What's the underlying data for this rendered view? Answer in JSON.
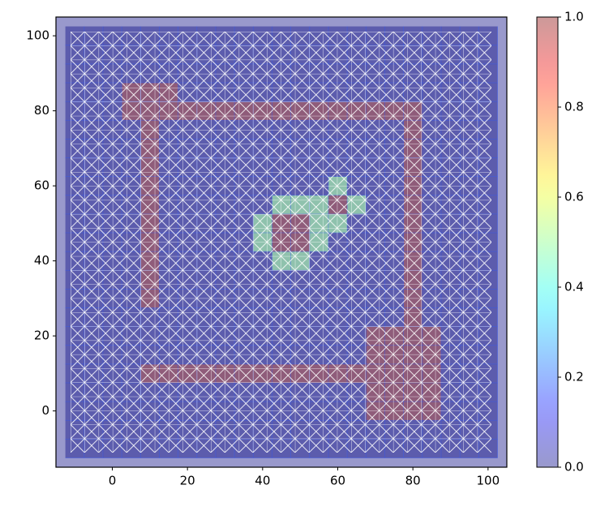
{
  "chart_data": {
    "type": "heatmap",
    "cmap": "jet",
    "alpha": 0.4,
    "x": [
      -10,
      -5,
      0,
      5,
      10,
      15,
      20,
      25,
      30,
      35,
      40,
      45,
      50,
      55,
      60,
      65,
      70,
      75,
      80,
      85,
      90,
      95,
      100
    ],
    "y": [
      -10,
      -5,
      0,
      5,
      10,
      15,
      20,
      25,
      30,
      35,
      40,
      45,
      50,
      55,
      60,
      65,
      70,
      75,
      80,
      85,
      90,
      95,
      100
    ],
    "z": [
      [
        0,
        0,
        0,
        0,
        0,
        0,
        0,
        0,
        0,
        0,
        0,
        0,
        0,
        0,
        0,
        0,
        0,
        0,
        0,
        0,
        0,
        0,
        0
      ],
      [
        0,
        0,
        0,
        0,
        0,
        0,
        0,
        0,
        0,
        0,
        0,
        0,
        0,
        0,
        0,
        0,
        0,
        0,
        0,
        0,
        0,
        0,
        0
      ],
      [
        0,
        0,
        0,
        0,
        0,
        0,
        0,
        0,
        0,
        0,
        0,
        0,
        0,
        0,
        0,
        0,
        1,
        1,
        1,
        1,
        0,
        0,
        0
      ],
      [
        0,
        0,
        0,
        0,
        0,
        0,
        0,
        0,
        0,
        0,
        0,
        0,
        0,
        0,
        0,
        0,
        1,
        1,
        1,
        1,
        0,
        0,
        0
      ],
      [
        0,
        0,
        0,
        0,
        1,
        1,
        1,
        1,
        1,
        1,
        1,
        1,
        1,
        1,
        1,
        1,
        1,
        1,
        1,
        1,
        0,
        0,
        0
      ],
      [
        0,
        0,
        0,
        0,
        0,
        0,
        0,
        0,
        0,
        0,
        0,
        0,
        0,
        0,
        0,
        0,
        1,
        1,
        1,
        1,
        0,
        0,
        0
      ],
      [
        0,
        0,
        0,
        0,
        0,
        0,
        0,
        0,
        0,
        0,
        0,
        0,
        0,
        0,
        0,
        0,
        1,
        1,
        1,
        1,
        0,
        0,
        0
      ],
      [
        0,
        0,
        0,
        0,
        0,
        0,
        0,
        0,
        0,
        0,
        0,
        0,
        0,
        0,
        0,
        0,
        0,
        0,
        1,
        0,
        0,
        0,
        0
      ],
      [
        0,
        0,
        0,
        0,
        1,
        0,
        0,
        0,
        0,
        0,
        0,
        0,
        0,
        0,
        0,
        0,
        0,
        0,
        1,
        0,
        0,
        0,
        0
      ],
      [
        0,
        0,
        0,
        0,
        1,
        0,
        0,
        0,
        0,
        0,
        0,
        0,
        0,
        0,
        0,
        0,
        0,
        0,
        1,
        0,
        0,
        0,
        0
      ],
      [
        0,
        0,
        0,
        0,
        1,
        0,
        0,
        0,
        0,
        0,
        0,
        0.5,
        0.5,
        0,
        0,
        0,
        0,
        0,
        1,
        0,
        0,
        0,
        0
      ],
      [
        0,
        0,
        0,
        0,
        1,
        0,
        0,
        0,
        0,
        0,
        0.5,
        1,
        1,
        0.5,
        0,
        0,
        0,
        0,
        1,
        0,
        0,
        0,
        0
      ],
      [
        0,
        0,
        0,
        0,
        1,
        0,
        0,
        0,
        0,
        0,
        0.5,
        1,
        1,
        0.5,
        0.5,
        0,
        0,
        0,
        1,
        0,
        0,
        0,
        0
      ],
      [
        0,
        0,
        0,
        0,
        1,
        0,
        0,
        0,
        0,
        0,
        0,
        0.5,
        0.5,
        0.5,
        1,
        0.5,
        0,
        0,
        1,
        0,
        0,
        0,
        0
      ],
      [
        0,
        0,
        0,
        0,
        1,
        0,
        0,
        0,
        0,
        0,
        0,
        0,
        0,
        0,
        0.5,
        0,
        0,
        0,
        1,
        0,
        0,
        0,
        0
      ],
      [
        0,
        0,
        0,
        0,
        1,
        0,
        0,
        0,
        0,
        0,
        0,
        0,
        0,
        0,
        0,
        0,
        0,
        0,
        1,
        0,
        0,
        0,
        0
      ],
      [
        0,
        0,
        0,
        0,
        1,
        0,
        0,
        0,
        0,
        0,
        0,
        0,
        0,
        0,
        0,
        0,
        0,
        0,
        1,
        0,
        0,
        0,
        0
      ],
      [
        0,
        0,
        0,
        0,
        1,
        0,
        0,
        0,
        0,
        0,
        0,
        0,
        0,
        0,
        0,
        0,
        0,
        0,
        1,
        0,
        0,
        0,
        0
      ],
      [
        0,
        0,
        0,
        1,
        1,
        1,
        1,
        1,
        1,
        1,
        1,
        1,
        1,
        1,
        1,
        1,
        1,
        1,
        1,
        0,
        0,
        0,
        0
      ],
      [
        0,
        0,
        0,
        1,
        1,
        1,
        0,
        0,
        0,
        0,
        0,
        0,
        0,
        0,
        0,
        0,
        0,
        0,
        0,
        0,
        0,
        0,
        0
      ],
      [
        0,
        0,
        0,
        0,
        0,
        0,
        0,
        0,
        0,
        0,
        0,
        0,
        0,
        0,
        0,
        0,
        0,
        0,
        0,
        0,
        0,
        0,
        0
      ],
      [
        0,
        0,
        0,
        0,
        0,
        0,
        0,
        0,
        0,
        0,
        0,
        0,
        0,
        0,
        0,
        0,
        0,
        0,
        0,
        0,
        0,
        0,
        0
      ],
      [
        0,
        0,
        0,
        0,
        0,
        0,
        0,
        0,
        0,
        0,
        0,
        0,
        0,
        0,
        0,
        0,
        0,
        0,
        0,
        0,
        0,
        0,
        0
      ]
    ],
    "xlim": [
      -15,
      105
    ],
    "ylim": [
      -15,
      105
    ],
    "xticks": [
      0,
      20,
      40,
      60,
      80,
      100
    ],
    "yticks": [
      0,
      20,
      40,
      60,
      80,
      100
    ],
    "zlim": [
      0,
      1
    ],
    "colorbar_ticks": [
      {
        "value": 0,
        "label": "0.0"
      },
      {
        "value": 0.2,
        "label": "0.2"
      },
      {
        "value": 0.4,
        "label": "0.4"
      },
      {
        "value": 0.6,
        "label": "0.6"
      },
      {
        "value": 0.8,
        "label": "0.8"
      },
      {
        "value": 1,
        "label": "1.0"
      }
    ]
  }
}
